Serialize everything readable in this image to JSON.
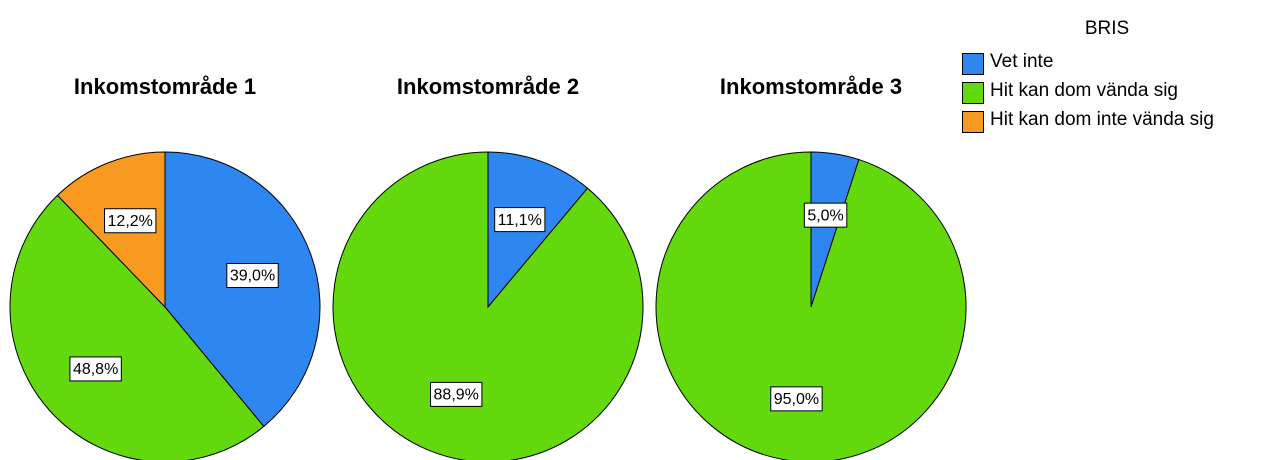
{
  "chart_data": [
    {
      "type": "pie",
      "title": "Inkomstområde 1",
      "categories": [
        "Vet inte",
        "Hit kan dom vända sig",
        "Hit kan dom inte vända sig"
      ],
      "values": [
        39.0,
        48.8,
        12.2
      ],
      "value_labels": [
        "39,0%",
        "48,8%",
        "12,2%"
      ],
      "colors": [
        "#2e86f0",
        "#63d80c",
        "#f89a20"
      ]
    },
    {
      "type": "pie",
      "title": "Inkomstområde 2",
      "categories": [
        "Vet inte",
        "Hit kan dom vända sig"
      ],
      "values": [
        11.1,
        88.9
      ],
      "value_labels": [
        "11,1%",
        "88,9%"
      ],
      "colors": [
        "#2e86f0",
        "#63d80c"
      ]
    },
    {
      "type": "pie",
      "title": "Inkomstområde 3",
      "categories": [
        "Vet inte",
        "Hit kan dom vända sig"
      ],
      "values": [
        5.0,
        95.0
      ],
      "value_labels": [
        "5,0%",
        "95,0%"
      ],
      "colors": [
        "#2e86f0",
        "#63d80c"
      ]
    }
  ],
  "legend": {
    "title": "BRIS"
  }
}
